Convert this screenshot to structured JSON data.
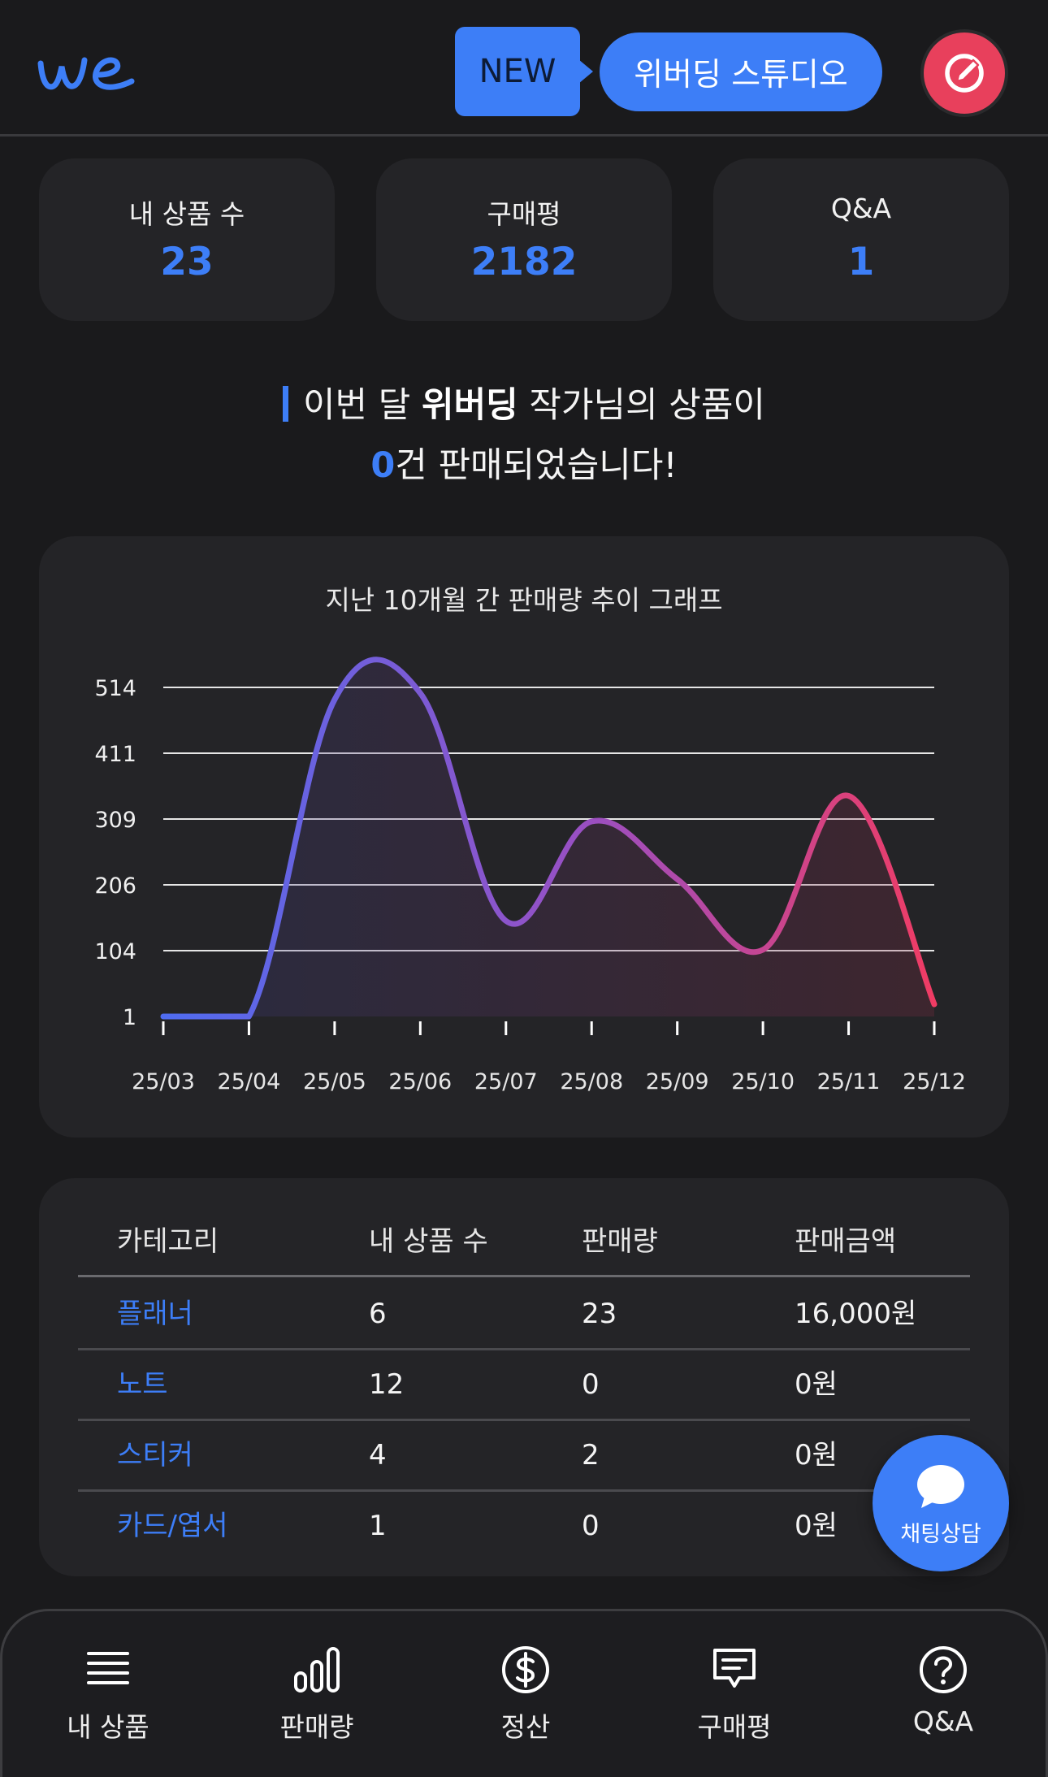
{
  "header": {
    "new_badge": "NEW",
    "studio_button": "위버딩 스튜디오"
  },
  "stats": [
    {
      "label": "내 상품 수",
      "value": "23"
    },
    {
      "label": "구매평",
      "value": "2182"
    },
    {
      "label": "Q&A",
      "value": "1"
    }
  ],
  "headline": {
    "part1": "이번 달 ",
    "brand": "위버딩",
    "part2": " 작가님의 상품이",
    "count": "0",
    "part3": "건 판매되었습니다!"
  },
  "chart_title": "지난 10개월 간 판매량 추이 그래프",
  "chart_data": {
    "type": "line",
    "title": "지난 10개월 간 판매량 추이 그래프",
    "x": [
      "25/03",
      "25/04",
      "25/05",
      "25/06",
      "25/07",
      "25/08",
      "25/09",
      "25/10",
      "25/11",
      "25/12"
    ],
    "series": [
      {
        "values": [
          1,
          1,
          495,
          505,
          150,
          305,
          215,
          105,
          345,
          20
        ]
      }
    ],
    "y_ticks": [
      "514",
      "411",
      "309",
      "206",
      "104",
      "1"
    ],
    "ylim": [
      1,
      514
    ],
    "grid": true,
    "line_gradient": [
      "#4f6cf0",
      "#f03c64"
    ]
  },
  "table": {
    "headers": [
      "카테고리",
      "내 상품 수",
      "판매량",
      "판매금액"
    ],
    "rows": [
      {
        "category": "플래너",
        "count": "6",
        "sales": "23",
        "amount": "16,000원"
      },
      {
        "category": "노트",
        "count": "12",
        "sales": "0",
        "amount": "0원"
      },
      {
        "category": "스티커",
        "count": "4",
        "sales": "2",
        "amount": "0원"
      },
      {
        "category": "카드/엽서",
        "count": "1",
        "sales": "0",
        "amount": "0원"
      }
    ]
  },
  "chat_button": "채팅상담",
  "nav": [
    {
      "label": "내 상품",
      "icon": "list-icon"
    },
    {
      "label": "판매량",
      "icon": "bar-chart-icon"
    },
    {
      "label": "정산",
      "icon": "dollar-icon"
    },
    {
      "label": "구매평",
      "icon": "message-icon"
    },
    {
      "label": "Q&A",
      "icon": "question-icon"
    }
  ],
  "colors": {
    "accent": "#3d7ef7",
    "edit": "#e8405c",
    "background": "#1a1a1c",
    "card": "#242427"
  }
}
